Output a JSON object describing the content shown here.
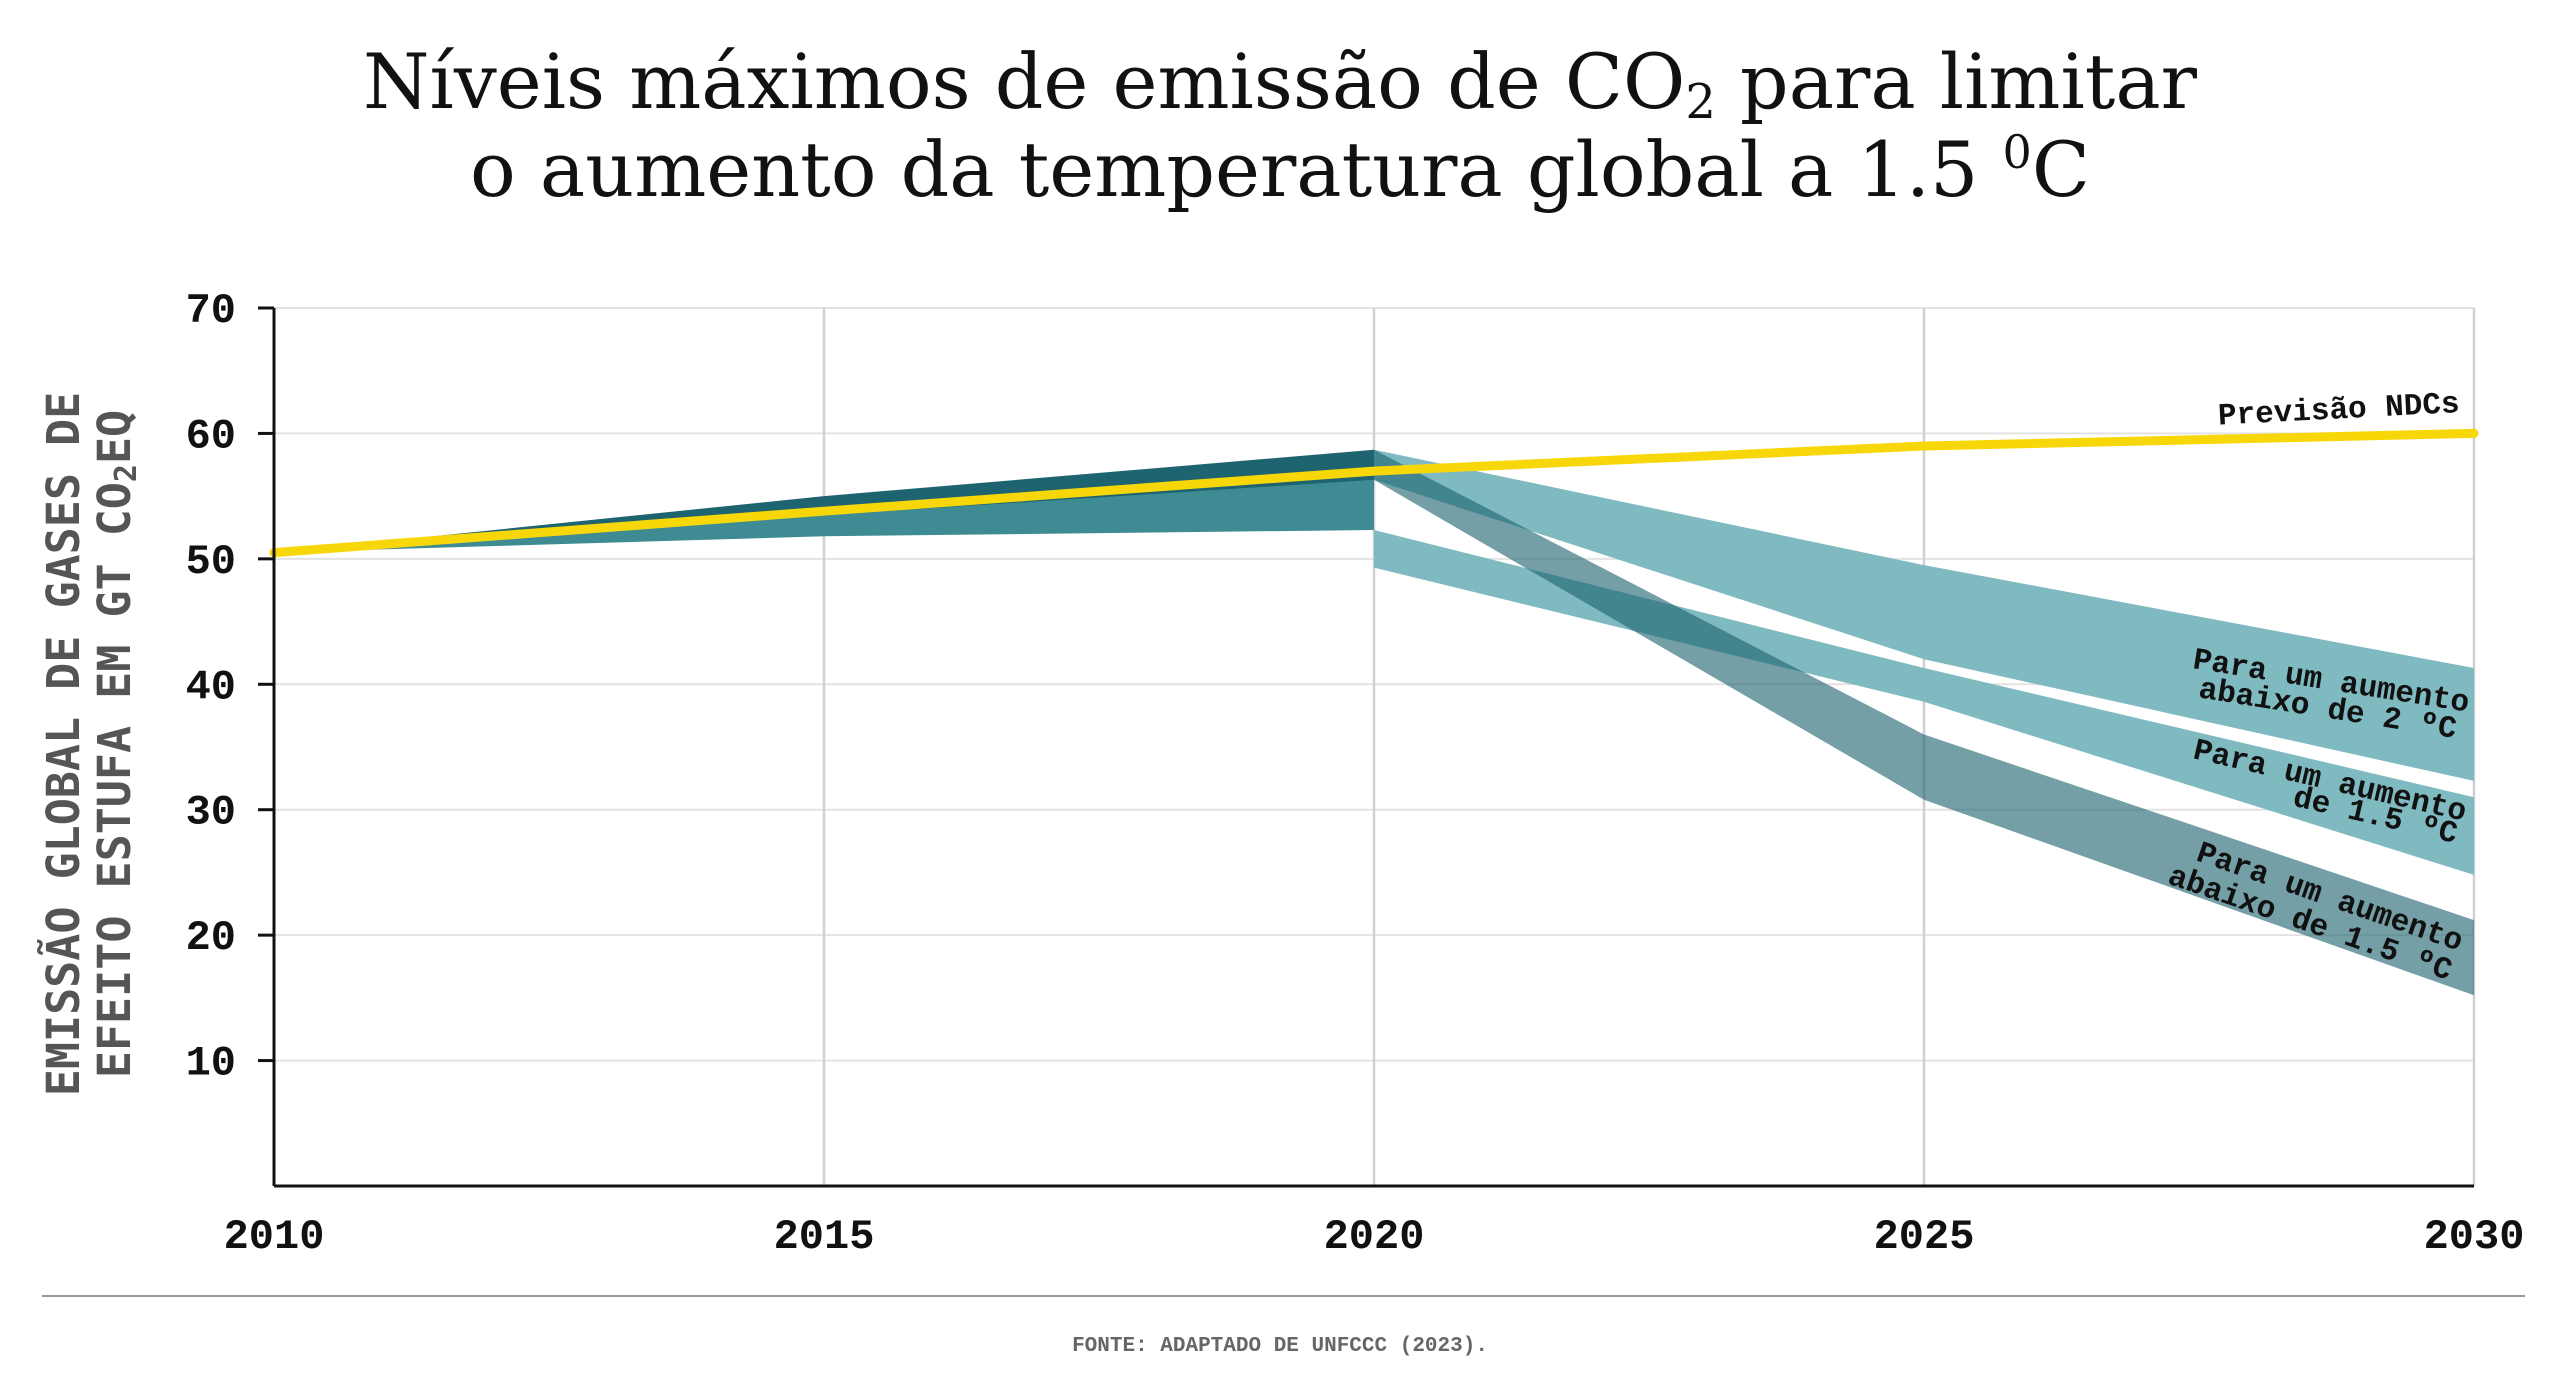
{
  "title": {
    "line1_a": "Níveis máximos de emissão de CO",
    "line1_sub": "2",
    "line1_b": " para limitar",
    "line2_a": "o aumento da temperatura global a 1.5 ",
    "line2_sup": "0",
    "line2_b": "C"
  },
  "ylabel": {
    "line1": "EMISSÃO GLOBAL DE GASES DE",
    "line2_a": "EFEITO ESTUFA EM GT CO",
    "line2_sub": "2",
    "line2_b": "EQ"
  },
  "source": "FONTE: ADAPTADO DE UNFCCC (2023).",
  "colors": {
    "ndc_line": "#f7d708",
    "dark_band": "#1e6470",
    "mid_band": "#3f8b93",
    "light_band": "#7fbac1",
    "axis": "#111111",
    "grid": "#e3e3e3"
  },
  "chart_data": {
    "type": "area",
    "x_ticks": [
      "2010",
      "2015",
      "2020",
      "2025",
      "2030"
    ],
    "y_ticks": [
      "10",
      "20",
      "30",
      "40",
      "50",
      "60",
      "70"
    ],
    "xlim": [
      2010,
      2030
    ],
    "ylim": [
      0,
      70
    ],
    "grid": true,
    "series": [
      {
        "name": "Previsão NDCs",
        "kind": "line",
        "x": [
          2010,
          2015,
          2020,
          2025,
          2030
        ],
        "y": [
          50.5,
          53.8,
          57.0,
          59.0,
          60.0
        ]
      },
      {
        "name": "",
        "kind": "band",
        "x": [
          2010,
          2015,
          2020
        ],
        "upper": [
          50.5,
          55.0,
          58.7
        ],
        "lower": [
          50.5,
          53.5,
          56.3
        ]
      },
      {
        "name": "",
        "kind": "band",
        "x": [
          2010,
          2015,
          2020
        ],
        "upper": [
          50.5,
          53.6,
          56.5
        ],
        "lower": [
          50.5,
          51.8,
          52.3
        ]
      },
      {
        "name": "Para um aumento abaixo de 2 ºC",
        "kind": "band",
        "x": [
          2020,
          2025,
          2030
        ],
        "upper": [
          58.7,
          49.5,
          41.3
        ],
        "lower": [
          56.3,
          42.0,
          32.3
        ]
      },
      {
        "name": "Para um aumento de 1.5 ºC",
        "kind": "band",
        "x": [
          2020,
          2025,
          2030
        ],
        "upper": [
          52.3,
          41.3,
          31.0
        ],
        "lower": [
          49.3,
          38.6,
          24.8
        ]
      },
      {
        "name": "Para um aumento abaixo de 1.5 ºC",
        "kind": "band",
        "x": [
          2020,
          2025,
          2030
        ],
        "upper": [
          58.7,
          36.0,
          21.2
        ],
        "lower": [
          56.3,
          30.8,
          15.2
        ]
      }
    ],
    "annotations": {
      "ndc": "Previsão NDCs",
      "below2_l1": "Para um aumento",
      "below2_l2": "abaixo de 2 ºC",
      "eq15_l1": "Para um aumento",
      "eq15_l2": "de 1.5 ºC",
      "below15_l1": "Para um aumento",
      "below15_l2": "abaixo de 1.5 ºC"
    }
  }
}
